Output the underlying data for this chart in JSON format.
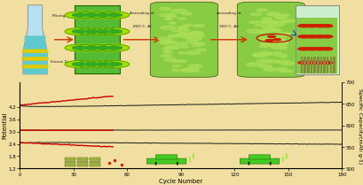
{
  "bg_color": "#f0dfa0",
  "plot_bg_color": "#f0dfa0",
  "xlabel": "Cycle Number",
  "ylabel_left": "Potential",
  "ylabel_right": "Specific Capacity(mAh g-1)",
  "xlim": [
    0,
    180
  ],
  "ylim_left": [
    1.2,
    5.4
  ],
  "ylim_right": [
    500,
    700
  ],
  "xticks": [
    0,
    30,
    60,
    90,
    120,
    150,
    180
  ],
  "yticks_left": [
    1.2,
    1.8,
    2.4,
    3.0,
    3.6,
    4.2
  ],
  "yticks_right": [
    500,
    550,
    600,
    650,
    700
  ],
  "black_color": "#1a1a1a",
  "red_color": "#cc0000",
  "linewidth_black": 0.7,
  "linewidth_red": 1.0,
  "fontsize_label": 5.0,
  "fontsize_tick": 4.0,
  "charge_black_y0": 4.18,
  "charge_black_y1": 4.42,
  "charge_red_y0": 4.28,
  "charge_red_y1": 4.72,
  "flat_black_y": 3.06,
  "flat_red_y": 3.06,
  "discharge_black_y0": 2.48,
  "discharge_black_y1": 2.38,
  "discharge_red_y0": 2.46,
  "discharge_red_y1": 2.25,
  "red_end_cycle": 52,
  "noise_black": 0.006,
  "noise_red": 0.009
}
